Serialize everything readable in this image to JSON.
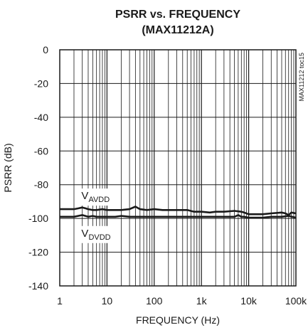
{
  "chart_data": {
    "type": "line",
    "title_line1": "PSRR vs. FREQUENCY",
    "title_line2": "(MAX11212A)",
    "xlabel": "FREQUENCY (Hz)",
    "ylabel": "PSRR (dB)",
    "side_note": "MAX11212 toc15",
    "x_scale": "log",
    "xlim": [
      1,
      100000
    ],
    "ylim": [
      -140,
      0
    ],
    "grid": true,
    "x_ticks": [
      {
        "value": 1,
        "label": "1"
      },
      {
        "value": 10,
        "label": "10"
      },
      {
        "value": 100,
        "label": "100"
      },
      {
        "value": 1000,
        "label": "1k"
      },
      {
        "value": 10000,
        "label": "10k"
      },
      {
        "value": 100000,
        "label": "100k"
      }
    ],
    "y_ticks": [
      {
        "value": 0,
        "label": "0"
      },
      {
        "value": -20,
        "label": "-20"
      },
      {
        "value": -40,
        "label": "-40"
      },
      {
        "value": -60,
        "label": "-60"
      },
      {
        "value": -80,
        "label": "-80"
      },
      {
        "value": -100,
        "label": "-100"
      },
      {
        "value": -120,
        "label": "-120"
      },
      {
        "value": -140,
        "label": "-140"
      }
    ],
    "series": [
      {
        "name_main": "V",
        "name_sub": "AVDD",
        "x": [
          1,
          1.5,
          2,
          2.5,
          3,
          3.5,
          4,
          5,
          6,
          8,
          10,
          15,
          20,
          30,
          40,
          50,
          70,
          100,
          150,
          200,
          300,
          500,
          700,
          1000,
          1500,
          2000,
          3000,
          5000,
          7000,
          8000,
          10000,
          15000,
          20000,
          30000,
          50000,
          60000,
          70000,
          80000,
          100000
        ],
        "y": [
          -94.5,
          -94.5,
          -94.5,
          -94,
          -93.5,
          -94,
          -94.5,
          -95,
          -95,
          -94.5,
          -95,
          -95,
          -95,
          -94.5,
          -93,
          -94.5,
          -95,
          -94.5,
          -95,
          -95,
          -95,
          -95,
          -96,
          -96,
          -96.5,
          -96,
          -96,
          -95.5,
          -96,
          -96.5,
          -97.5,
          -97.5,
          -97.5,
          -97,
          -96.5,
          -97,
          -98,
          -96.5,
          -97
        ]
      },
      {
        "name_main": "V",
        "name_sub": "DVDD",
        "x": [
          1,
          2,
          3,
          4,
          5,
          6,
          8,
          10,
          15,
          20,
          30,
          50,
          100,
          200,
          300,
          500,
          1000,
          2000,
          3000,
          5000,
          6000,
          7000,
          8000,
          10000,
          20000,
          30000,
          50000,
          70000,
          100000
        ],
        "y": [
          -99,
          -99,
          -98,
          -99,
          -98.5,
          -99,
          -99,
          -99,
          -99,
          -98.5,
          -99,
          -99,
          -99,
          -99,
          -99,
          -99,
          -99,
          -99,
          -99,
          -99,
          -98,
          -99,
          -99,
          -99.5,
          -99.5,
          -99,
          -99,
          -98.5,
          -99.5
        ]
      }
    ]
  }
}
